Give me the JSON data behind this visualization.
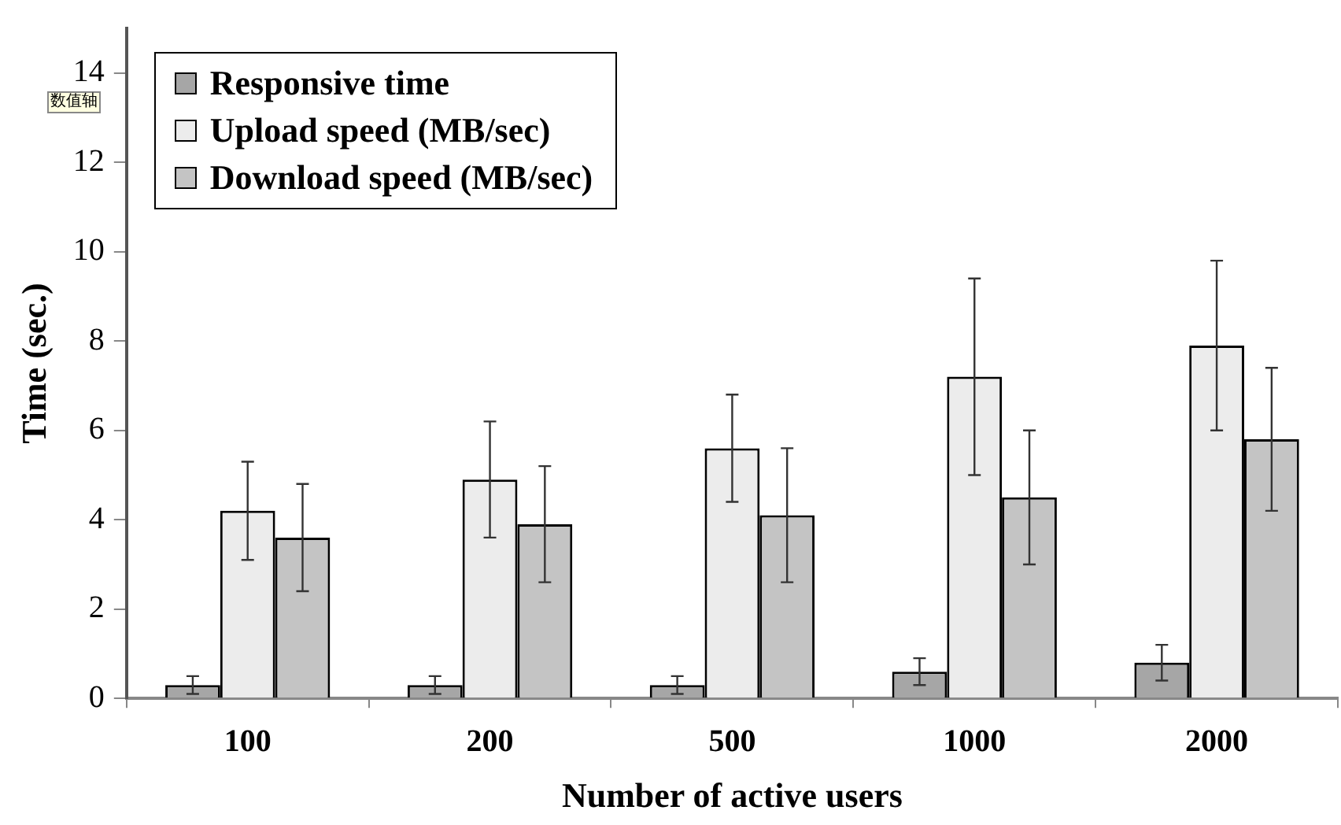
{
  "chart_data": {
    "type": "bar",
    "xlabel": "Number of active users",
    "ylabel": "Time (sec.)",
    "categories": [
      "100",
      "200",
      "500",
      "1000",
      "2000"
    ],
    "series": [
      {
        "name": "Responsive time",
        "color": "#a6a6a6",
        "values": [
          0.3,
          0.3,
          0.3,
          0.6,
          0.8
        ],
        "errors": [
          [
            0.1,
            0.5
          ],
          [
            0.1,
            0.5
          ],
          [
            0.1,
            0.5
          ],
          [
            0.3,
            0.9
          ],
          [
            0.4,
            1.2
          ]
        ]
      },
      {
        "name": "Upload speed (MB/sec)",
        "color": "#ececec",
        "values": [
          4.2,
          4.9,
          5.6,
          7.2,
          7.9
        ],
        "errors": [
          [
            3.1,
            5.3
          ],
          [
            3.6,
            6.2
          ],
          [
            4.4,
            6.8
          ],
          [
            5.0,
            9.4
          ],
          [
            6.0,
            9.8
          ]
        ]
      },
      {
        "name": "Download speed (MB/sec)",
        "color": "#c4c4c4",
        "values": [
          3.6,
          3.9,
          4.1,
          4.5,
          5.8
        ],
        "errors": [
          [
            2.4,
            4.8
          ],
          [
            2.6,
            5.2
          ],
          [
            2.6,
            5.6
          ],
          [
            3.0,
            6.0
          ],
          [
            4.2,
            7.4
          ]
        ]
      }
    ],
    "ylim": [
      0,
      15
    ],
    "yticks": [
      0,
      2,
      4,
      6,
      8,
      10,
      12,
      14
    ],
    "grid": false,
    "legend": "top left",
    "annotations": [
      "数值轴"
    ]
  }
}
